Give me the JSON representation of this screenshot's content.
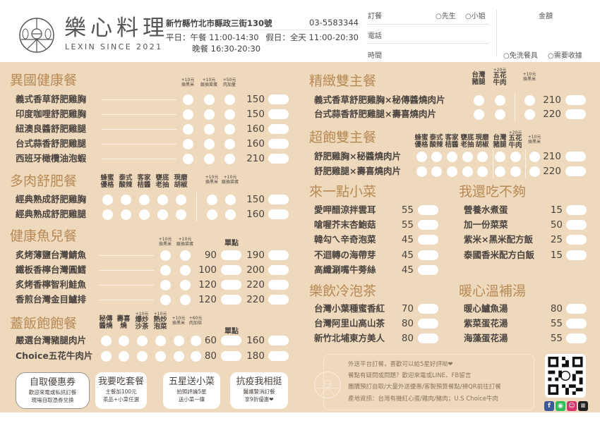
{
  "header": {
    "brand": "樂心料理",
    "brand_sub": "LEXIN SINCE 2021",
    "address": "新竹縣竹北市縣政三街130號",
    "phone": "03-5583344",
    "weekday": "平日：午餐 11:00-14:30",
    "holiday": "假日：全天 11:00-20:30",
    "dinner": "晚餐 16:30-20:30"
  },
  "order_form": {
    "order": "訂餐",
    "mr": "○先生",
    "ms": "○小姐",
    "phone": "電話",
    "time": "時間",
    "amount": "金額",
    "no_utensils": "○免洗餐具",
    "receipt": "○需要收據"
  },
  "menu": {
    "exotic": {
      "title": "異國健康餐",
      "options": [
        {
          "extra": "+10元",
          "label": "換黑米"
        },
        {
          "extra": "+10元",
          "label": "飯換菜蛋"
        },
        {
          "extra": "+50元",
          "label": "肉加量"
        }
      ],
      "items": [
        {
          "name": "義式香草舒肥雞胸",
          "price": "150"
        },
        {
          "name": "印度咖哩舒肥雞胸",
          "price": "150"
        },
        {
          "name": "紐澳良醬舒肥雞腿",
          "price": "160"
        },
        {
          "name": "台式蒜香舒肥雞腿",
          "price": "160"
        },
        {
          "name": "西班牙橄欖油泡蝦",
          "price": "210"
        }
      ]
    },
    "meat": {
      "title": "多肉舒肥餐",
      "options": [
        {
          "label": "蜂蜜\n優格"
        },
        {
          "label": "泰式\n酸辣"
        },
        {
          "label": "客家\n桔醬"
        },
        {
          "label": "甕底\n老抽"
        },
        {
          "label": "現磨\n胡椒"
        },
        {
          "extra": "+10元",
          "label": "換黑米"
        },
        {
          "extra": "+10元",
          "label": "飯換菜蛋"
        }
      ],
      "items": [
        {
          "name": "經典熟成舒肥雞胸",
          "price": "150"
        },
        {
          "name": "經典熟成舒肥雞腿",
          "price": "160"
        }
      ]
    },
    "fish": {
      "title": "健康魚兒餐",
      "single_label": "單點",
      "options": [
        {
          "extra": "+10元",
          "label": "換黑米"
        },
        {
          "extra": "+10元",
          "label": "飯換菜蛋"
        }
      ],
      "items": [
        {
          "name": "炙烤薄鹽台灣鯖魚",
          "single": "90",
          "price": "190"
        },
        {
          "name": "鐵板香檸台灣圓鱈",
          "single": "100",
          "price": "200"
        },
        {
          "name": "炙烤香檸智利鮭魚",
          "single": "120",
          "price": "220"
        },
        {
          "name": "香煎台灣金目鱸排",
          "single": "120",
          "price": "220"
        }
      ]
    },
    "rice": {
      "title": "蓋飯飽飽餐",
      "single_label": "單點",
      "options": [
        {
          "label": "秘傳\n醬燒"
        },
        {
          "label": "壽喜\n燒"
        },
        {
          "extra": "+10元",
          "label": "爆炒\n沙茶"
        },
        {
          "extra": "+10元",
          "label": "熱炒\n泡菜"
        },
        {
          "extra": "+10元",
          "label": "換黑米"
        },
        {
          "extra": "+60元",
          "label": "肉加倍"
        }
      ],
      "items": [
        {
          "name": "嚴選台灣豬腿肉片",
          "single": "60",
          "price": "160"
        },
        {
          "name": "Choice五花牛肉片",
          "single": "80",
          "price": "180"
        }
      ]
    },
    "fine_double": {
      "title": "精緻雙主餐",
      "options": [
        {
          "label": "台灣\n豬腿"
        },
        {
          "extra": "+20元",
          "label": "五花\n牛肉"
        },
        {
          "extra": "+10元",
          "label": "換黑米"
        }
      ],
      "items": [
        {
          "name": "義式香草舒肥雞胸×秘傳醬燒肉片",
          "price": "210"
        },
        {
          "name": "台式蒜香舒肥雞腿×壽喜燒肉片",
          "price": "220"
        }
      ]
    },
    "super_double": {
      "title": "超飽雙主餐",
      "options": [
        {
          "label": "蜂蜜\n優格"
        },
        {
          "label": "泰式\n酸辣"
        },
        {
          "label": "客家\n桔醬"
        },
        {
          "label": "甕底\n老抽"
        },
        {
          "label": "現磨\n胡椒"
        },
        {
          "label": "台灣\n豬腿"
        },
        {
          "extra": "+20元",
          "label": "五花\n牛肉"
        },
        {
          "extra": "+10元",
          "label": "換黑米"
        }
      ],
      "items": [
        {
          "name": "舒肥雞胸×秘醬燒肉片",
          "price": "210"
        },
        {
          "name": "舒肥雞腿×壽喜燒肉片",
          "price": "220"
        }
      ]
    },
    "sides": {
      "title": "來一點小菜",
      "items": [
        {
          "name": "愛呷醋涼拌雲耳",
          "price": "55"
        },
        {
          "name": "嗆喔芥末杏鮑菇",
          "price": "55"
        },
        {
          "name": "韓勾ㄟ辛奇泡菜",
          "price": "45"
        },
        {
          "name": "不迴轉の海帶芽",
          "price": "45"
        },
        {
          "name": "高纖涮嘴牛蒡絲",
          "price": "45"
        }
      ]
    },
    "more": {
      "title": "我還吃不夠",
      "items": [
        {
          "name": "營養水煮蛋",
          "price": "15"
        },
        {
          "name": "加一份菜菜",
          "price": "50"
        },
        {
          "name": "紫米×黑米配方飯",
          "price": "25"
        },
        {
          "name": "泰國香米配方白飯",
          "price": "15"
        }
      ]
    },
    "tea": {
      "title": "樂飲冷泡茶",
      "items": [
        {
          "name": "台灣小葉種蜜香紅",
          "price": "70"
        },
        {
          "name": "台灣阿里山高山茶",
          "price": "80"
        },
        {
          "name": "新竹北埔東方美人",
          "price": "80"
        }
      ]
    },
    "soup": {
      "title": "暖心溫補湯",
      "items": [
        {
          "name": "暖心鱸魚湯",
          "price": "80"
        },
        {
          "name": "紫菜蛋花湯",
          "price": "55"
        },
        {
          "name": "海藻蛋花湯",
          "price": "55"
        }
      ]
    }
  },
  "promos": [
    {
      "title": "自取優惠券",
      "line1": "歡迎來電或私訊訂餐",
      "line2": "現場自取憑券兌換"
    },
    {
      "title": "我要吃套餐",
      "line1": "主餐加100元",
      "line2": "茶品+小菜任選"
    },
    {
      "title": "五星送小菜",
      "line1": "拍照評論5星",
      "line2": "送小菜一碟"
    },
    {
      "title": "抗疫我相挺",
      "line1": "醫護警消訂餐",
      "line2": "享9折優惠❤"
    }
  ],
  "info": [
    "外送平台訂餐，喜歡可以給5星好評呦❤",
    "餐點有疑問或問題？歡迎來電或LINE、FB留言",
    "團購預訂自取/大量外送優惠/客製預算餐點/掃QR前往訂餐",
    "產地資訊：台灣有機紅心蛋/雞肉/豬肉；U.S Choice牛肉"
  ],
  "social": [
    {
      "icon": "facebook-icon",
      "glyph": "f",
      "color": "#3b5998"
    },
    {
      "icon": "line-icon",
      "glyph": "◉",
      "color": "#2fbf57"
    },
    {
      "icon": "foodpanda-icon",
      "glyph": "☺",
      "color": "#d6336c"
    },
    {
      "icon": "ubereats-icon",
      "glyph": "≡",
      "color": "#222222"
    }
  ],
  "colors": {
    "background": "#efd9bc",
    "title": "#b78955",
    "text": "#4a4440"
  }
}
